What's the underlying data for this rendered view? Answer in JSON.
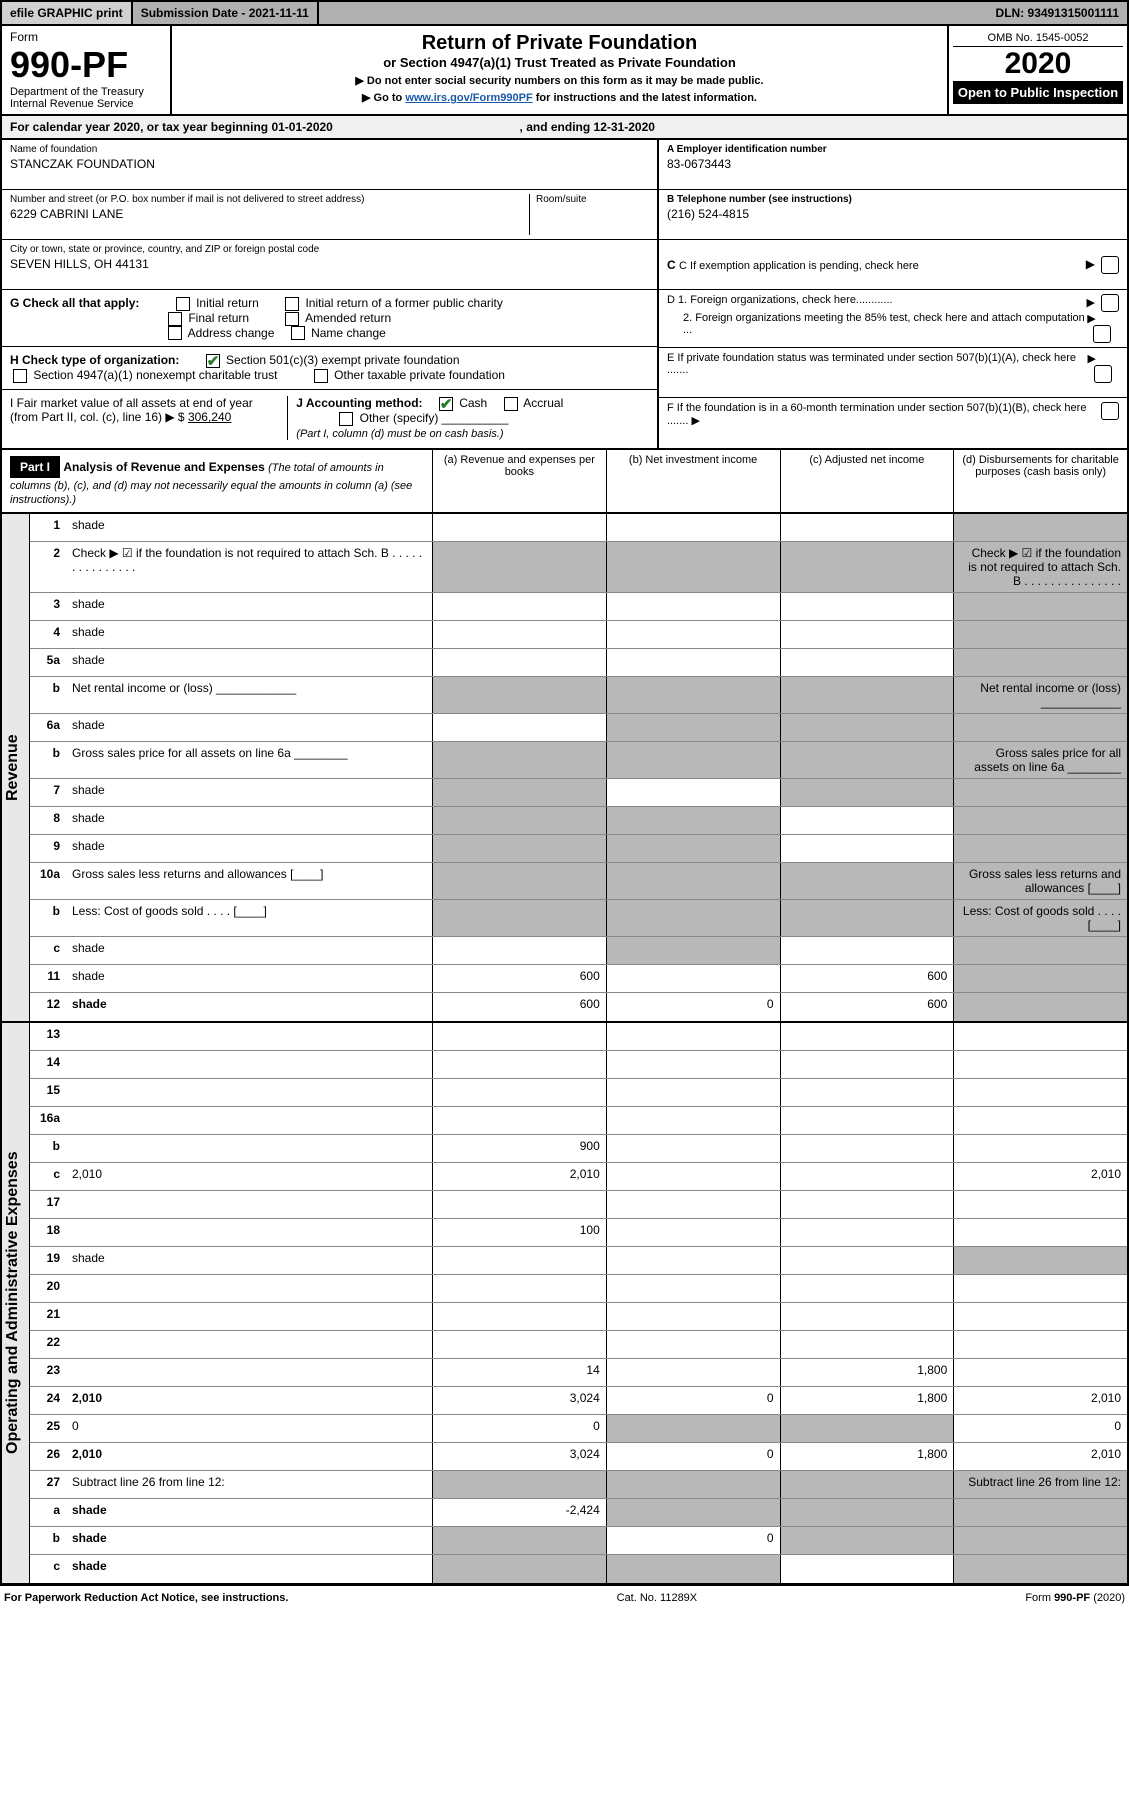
{
  "topbar": {
    "efile": "efile GRAPHIC print",
    "subdate": "Submission Date - 2021-11-11",
    "dln": "DLN: 93491315001111"
  },
  "header": {
    "form_label": "Form",
    "form_number": "990-PF",
    "dept": "Department of the Treasury",
    "irs": "Internal Revenue Service",
    "title": "Return of Private Foundation",
    "subtitle": "or Section 4947(a)(1) Trust Treated as Private Foundation",
    "instr1": "▶ Do not enter social security numbers on this form as it may be made public.",
    "instr2_pre": "▶ Go to ",
    "instr2_link": "www.irs.gov/Form990PF",
    "instr2_post": " for instructions and the latest information.",
    "omb": "OMB No. 1545-0052",
    "year": "2020",
    "inspection": "Open to Public Inspection"
  },
  "caly": {
    "pre": "For calendar year 2020, or tax year beginning ",
    "begin": "01-01-2020",
    "mid": ", and ending ",
    "end": "12-31-2020"
  },
  "id": {
    "name_label": "Name of foundation",
    "name": "STANCZAK FOUNDATION",
    "addr_label": "Number and street (or P.O. box number if mail is not delivered to street address)",
    "addr": "6229 CABRINI LANE",
    "room_label": "Room/suite",
    "city_label": "City or town, state or province, country, and ZIP or foreign postal code",
    "city": "SEVEN HILLS, OH  44131",
    "a_label": "A Employer identification number",
    "a_val": "83-0673443",
    "b_label": "B Telephone number (see instructions)",
    "b_val": "(216) 524-4815",
    "c_label": "C If exemption application is pending, check here",
    "g_label": "G Check all that apply:",
    "g_opts": [
      "Initial return",
      "Initial return of a former public charity",
      "Final return",
      "Amended return",
      "Address change",
      "Name change"
    ],
    "h_label": "H Check type of organization:",
    "h_1": "Section 501(c)(3) exempt private foundation",
    "h_2": "Section 4947(a)(1) nonexempt charitable trust",
    "h_3": "Other taxable private foundation",
    "i_label": "I Fair market value of all assets at end of year (from Part II, col. (c), line 16) ▶ $",
    "i_val": "306,240",
    "j_label": "J Accounting method:",
    "j_cash": "Cash",
    "j_accr": "Accrual",
    "j_other": "Other (specify)",
    "j_note": "(Part I, column (d) must be on cash basis.)",
    "d1": "D 1. Foreign organizations, check here............",
    "d2": "2. Foreign organizations meeting the 85% test, check here and attach computation ...",
    "e": "E If private foundation status was terminated under section 507(b)(1)(A), check here .......",
    "f": "F If the foundation is in a 60-month termination under section 507(b)(1)(B), check here .......  ▶"
  },
  "part1": {
    "label": "Part I",
    "title": "Analysis of Revenue and Expenses",
    "desc": "(The total of amounts in columns (b), (c), and (d) may not necessarily equal the amounts in column (a) (see instructions).)",
    "cols": {
      "a": "(a) Revenue and expenses per books",
      "b": "(b) Net investment income",
      "c": "(c) Adjusted net income",
      "d": "(d) Disbursements for charitable purposes (cash basis only)"
    }
  },
  "sections": [
    {
      "side": "Revenue",
      "rows": [
        {
          "n": "1",
          "d": "shade",
          "a": "",
          "b": "",
          "c": ""
        },
        {
          "n": "2",
          "d": "Check ▶ ☑ if the foundation is not required to attach Sch. B    . . . . . . . . . . . . . . .",
          "noval": true
        },
        {
          "n": "3",
          "d": "shade",
          "a": "",
          "b": "",
          "c": ""
        },
        {
          "n": "4",
          "d": "shade",
          "a": "",
          "b": "",
          "c": ""
        },
        {
          "n": "5a",
          "d": "shade",
          "a": "",
          "b": "",
          "c": ""
        },
        {
          "n": "b",
          "d": "Net rental income or (loss) ____________",
          "noval": true,
          "shadeall": true
        },
        {
          "n": "6a",
          "d": "shade",
          "a": "",
          "b": "shade",
          "c": "shade"
        },
        {
          "n": "b",
          "d": "Gross sales price for all assets on line 6a ________",
          "noval": true,
          "shadeall": true
        },
        {
          "n": "7",
          "d": "shade",
          "a": "shade",
          "b": "",
          "c": "shade"
        },
        {
          "n": "8",
          "d": "shade",
          "a": "shade",
          "b": "shade",
          "c": ""
        },
        {
          "n": "9",
          "d": "shade",
          "a": "shade",
          "b": "shade",
          "c": ""
        },
        {
          "n": "10a",
          "d": "Gross sales less returns and allowances  [____]",
          "noval": true,
          "shadeall": true
        },
        {
          "n": "b",
          "d": "Less: Cost of goods sold   . . . .  [____]",
          "noval": true,
          "shadeall": true
        },
        {
          "n": "c",
          "d": "shade",
          "a": "",
          "b": "shade",
          "c": ""
        },
        {
          "n": "11",
          "d": "shade",
          "a": "600",
          "b": "",
          "c": "600"
        },
        {
          "n": "12",
          "d": "shade",
          "bold": true,
          "a": "600",
          "b": "0",
          "c": "600"
        }
      ]
    },
    {
      "side": "Operating and Administrative Expenses",
      "rows": [
        {
          "n": "13",
          "d": "",
          "a": "",
          "b": "",
          "c": ""
        },
        {
          "n": "14",
          "d": "",
          "a": "",
          "b": "",
          "c": ""
        },
        {
          "n": "15",
          "d": "",
          "a": "",
          "b": "",
          "c": ""
        },
        {
          "n": "16a",
          "d": "",
          "a": "",
          "b": "",
          "c": ""
        },
        {
          "n": "b",
          "d": "",
          "a": "900",
          "b": "",
          "c": ""
        },
        {
          "n": "c",
          "d": "2,010",
          "a": "2,010",
          "b": "",
          "c": ""
        },
        {
          "n": "17",
          "d": "",
          "a": "",
          "b": "",
          "c": ""
        },
        {
          "n": "18",
          "d": "",
          "a": "100",
          "b": "",
          "c": ""
        },
        {
          "n": "19",
          "d": "shade",
          "a": "",
          "b": "",
          "c": ""
        },
        {
          "n": "20",
          "d": "",
          "a": "",
          "b": "",
          "c": ""
        },
        {
          "n": "21",
          "d": "",
          "a": "",
          "b": "",
          "c": ""
        },
        {
          "n": "22",
          "d": "",
          "a": "",
          "b": "",
          "c": ""
        },
        {
          "n": "23",
          "d": "",
          "a": "14",
          "b": "",
          "c": "1,800"
        },
        {
          "n": "24",
          "d": "2,010",
          "bold": true,
          "a": "3,024",
          "b": "0",
          "c": "1,800"
        },
        {
          "n": "25",
          "d": "0",
          "a": "0",
          "b": "shade",
          "c": "shade"
        },
        {
          "n": "26",
          "d": "2,010",
          "bold": true,
          "a": "3,024",
          "b": "0",
          "c": "1,800"
        },
        {
          "n": "27",
          "d": "Subtract line 26 from line 12:",
          "noval": true,
          "shadeall": true
        },
        {
          "n": "a",
          "d": "shade",
          "bold": true,
          "a": "-2,424",
          "b": "shade",
          "c": "shade"
        },
        {
          "n": "b",
          "d": "shade",
          "bold": true,
          "a": "shade",
          "b": "0",
          "c": "shade"
        },
        {
          "n": "c",
          "d": "shade",
          "bold": true,
          "a": "shade",
          "b": "shade",
          "c": ""
        }
      ]
    }
  ],
  "footer": {
    "left": "For Paperwork Reduction Act Notice, see instructions.",
    "mid": "Cat. No. 11289X",
    "right": "Form 990-PF (2020)"
  }
}
